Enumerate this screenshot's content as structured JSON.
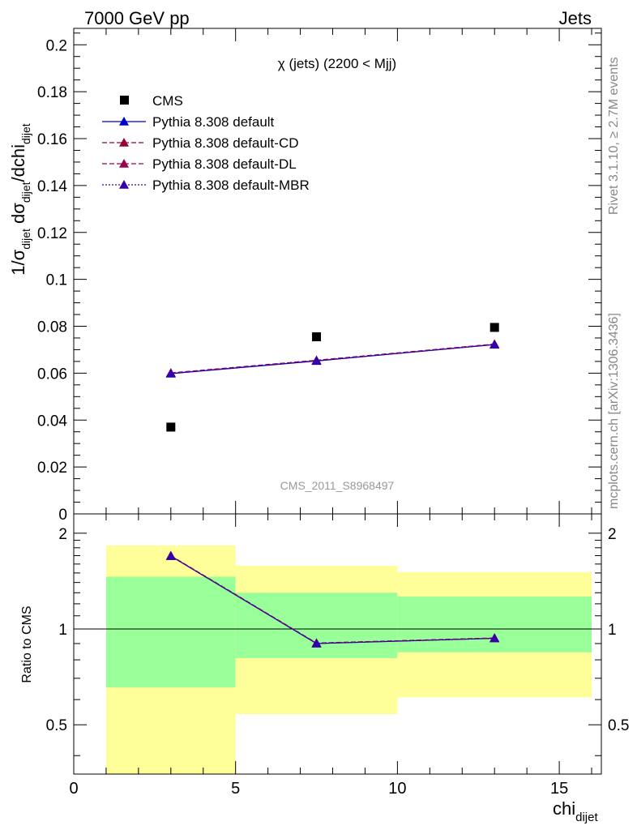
{
  "header": {
    "left": "7000 GeV pp",
    "right": "Jets"
  },
  "side_labels": {
    "rivet": "Rivet 3.1.10, ≥ 2.7M events",
    "mcplots": "mcplots.cern.ch [arXiv:1306.3436]"
  },
  "colors": {
    "cms": "#000000",
    "pythia_default": "#0000cc",
    "pythia_cd": "#990033",
    "pythia_dl": "#99004d",
    "pythia_mbr": "#3300aa",
    "band_inner": "#99ff99",
    "band_outer": "#ffff99"
  },
  "chart_data": [
    {
      "type": "scatter",
      "title": "χ (jets) (2200 < Mjj)",
      "watermark": "CMS_2011_S8968497",
      "ylabel": "1/σ_dijet dσ_dijet/dchi_dijet",
      "ylim": [
        0,
        0.207
      ],
      "xlim": [
        0,
        16.3
      ],
      "y_ticks": [
        "0",
        "0.02",
        "0.04",
        "0.06",
        "0.08",
        "0.1",
        "0.12",
        "0.14",
        "0.16",
        "0.18",
        "0.2"
      ],
      "legend": [
        "CMS",
        "Pythia 8.308 default",
        "Pythia 8.308 default-CD",
        "Pythia 8.308 default-DL",
        "Pythia 8.308 default-MBR"
      ],
      "series": [
        {
          "name": "CMS",
          "x": [
            3,
            7.5,
            13
          ],
          "y": [
            0.037,
            0.0755,
            0.0795
          ]
        },
        {
          "name": "Pythia 8.308 default",
          "x": [
            3,
            7.5,
            13
          ],
          "y": [
            0.0598,
            0.0652,
            0.0722
          ]
        },
        {
          "name": "Pythia 8.308 default-CD",
          "x": [
            3,
            7.5,
            13
          ],
          "y": [
            0.0601,
            0.0655,
            0.0724
          ]
        },
        {
          "name": "Pythia 8.308 default-DL",
          "x": [
            3,
            7.5,
            13
          ],
          "y": [
            0.06,
            0.0654,
            0.0723
          ]
        },
        {
          "name": "Pythia 8.308 default-MBR",
          "x": [
            3,
            7.5,
            13
          ],
          "y": [
            0.0599,
            0.0653,
            0.0722
          ]
        }
      ]
    },
    {
      "type": "line",
      "ylabel": "Ratio to CMS",
      "xlabel": "chi_dijet",
      "ylim": [
        0.35,
        2.3
      ],
      "xlim": [
        0,
        16.3
      ],
      "x_ticks": [
        "0",
        "5",
        "10",
        "15"
      ],
      "y_ticks": [
        "0.5",
        "1",
        "2"
      ],
      "reference_line": 1,
      "bins": [
        {
          "x_lo": 1,
          "x_hi": 5,
          "inner": [
            0.655,
            1.46
          ],
          "outer": [
            0.3,
            1.83
          ]
        },
        {
          "x_lo": 5,
          "x_hi": 10,
          "inner": [
            0.81,
            1.3
          ],
          "outer": [
            0.54,
            1.58
          ]
        },
        {
          "x_lo": 10,
          "x_hi": 16,
          "inner": [
            0.845,
            1.265
          ],
          "outer": [
            0.61,
            1.51
          ]
        }
      ],
      "series": [
        {
          "name": "Pythia 8.308 default",
          "x": [
            3,
            7.5,
            13
          ],
          "y": [
            1.695,
            0.9,
            0.935
          ]
        },
        {
          "name": "Pythia 8.308 default-CD",
          "x": [
            3,
            7.5,
            13
          ],
          "y": [
            1.7,
            0.903,
            0.937
          ]
        },
        {
          "name": "Pythia 8.308 default-DL",
          "x": [
            3,
            7.5,
            13
          ],
          "y": [
            1.698,
            0.902,
            0.936
          ]
        },
        {
          "name": "Pythia 8.308 default-MBR",
          "x": [
            3,
            7.5,
            13
          ],
          "y": [
            1.696,
            0.901,
            0.935
          ]
        }
      ]
    }
  ]
}
